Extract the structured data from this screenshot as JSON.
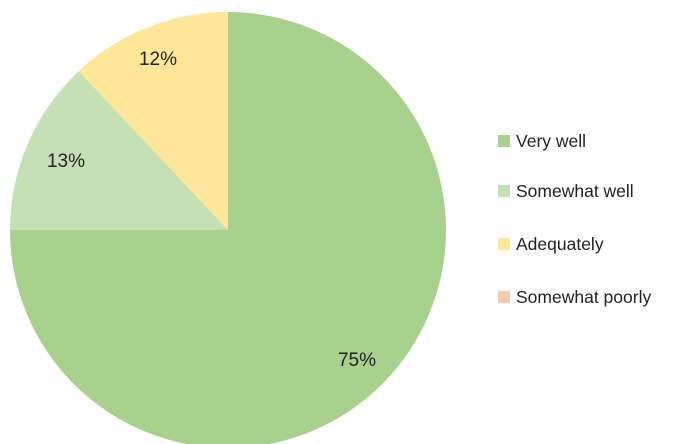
{
  "chart_data": {
    "type": "pie",
    "title": "",
    "start_angle_deg": 0,
    "direction": "clockwise",
    "legend_position": "right",
    "slices": [
      {
        "label": "Very well",
        "value": 75,
        "display": "75%",
        "color": "#a9d18e"
      },
      {
        "label": "Somewhat well",
        "value": 13,
        "display": "13%",
        "color": "#c5e0b4"
      },
      {
        "label": "Adequately",
        "value": 12,
        "display": "12%",
        "color": "#ffe699"
      },
      {
        "label": "Somewhat poorly",
        "value": 0,
        "display": "",
        "color": "#f8cbad"
      }
    ]
  }
}
